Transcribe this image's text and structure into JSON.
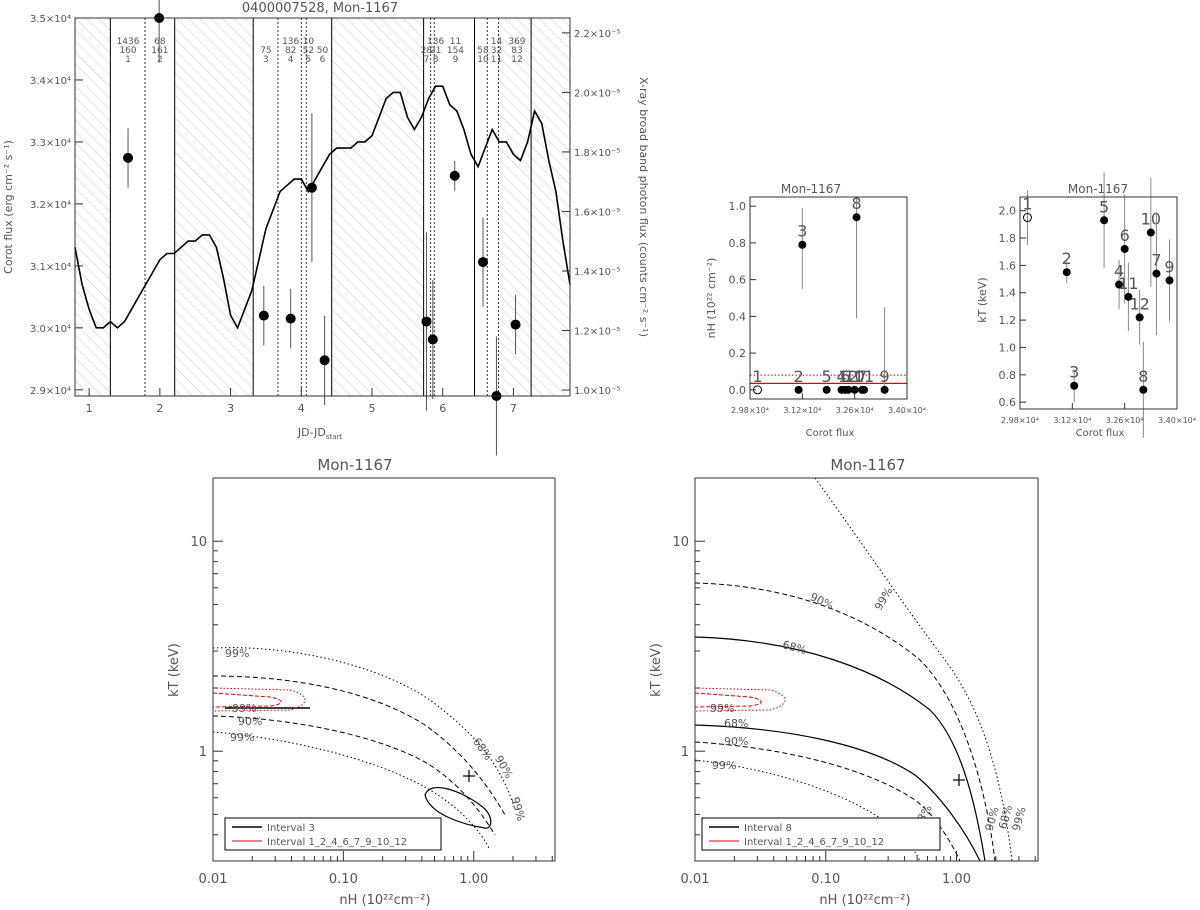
{
  "chart_data": [
    {
      "id": "lightcurve",
      "type": "line",
      "title": "0400007528, Mon-1167",
      "xlabel": "JD-JD",
      "xlabel_sub": "start",
      "ylabel": "Corot flux (erg cm⁻² s⁻¹)",
      "ylabel_right": "X-ray broad band photon flux (counts cm⁻² s⁻¹)",
      "xlim": [
        0.8,
        7.8
      ],
      "ylim": [
        28900,
        35000
      ],
      "ylim_right": [
        9.8e-06,
        2.25e-05
      ],
      "xticks": [
        "1",
        "2",
        "3",
        "4",
        "5",
        "6",
        "7"
      ],
      "yticks": [
        "2.9×10⁴",
        "3.0×10⁴",
        "3.1×10⁴",
        "3.2×10⁴",
        "3.3×10⁴",
        "3.4×10⁴",
        "3.5×10⁴"
      ],
      "yticks_right": [
        "1.0×10⁻⁵",
        "1.2×10⁻⁵",
        "1.4×10⁻⁵",
        "1.6×10⁻⁵",
        "1.8×10⁻⁵",
        "2.0×10⁻⁵",
        "2.2×10⁻⁵"
      ],
      "corot_flux": {
        "x": [
          0.8,
          0.9,
          1.0,
          1.1,
          1.2,
          1.3,
          1.4,
          1.5,
          1.6,
          1.7,
          1.8,
          1.9,
          2.0,
          2.1,
          2.2,
          2.3,
          2.4,
          2.5,
          2.6,
          2.7,
          2.8,
          2.9,
          3.0,
          3.1,
          3.2,
          3.3,
          3.4,
          3.5,
          3.6,
          3.7,
          3.8,
          3.9,
          4.0,
          4.1,
          4.2,
          4.3,
          4.4,
          4.5,
          4.6,
          4.7,
          4.8,
          4.9,
          5.0,
          5.1,
          5.2,
          5.3,
          5.4,
          5.5,
          5.6,
          5.7,
          5.8,
          5.9,
          6.0,
          6.1,
          6.2,
          6.3,
          6.4,
          6.5,
          6.6,
          6.7,
          6.8,
          6.9,
          7.0,
          7.1,
          7.2,
          7.3,
          7.4,
          7.5,
          7.6,
          7.7,
          7.8
        ],
        "y": [
          31300,
          30700,
          30300,
          30000,
          30000,
          30100,
          30000,
          30100,
          30300,
          30500,
          30700,
          30900,
          31100,
          31200,
          31200,
          31300,
          31400,
          31400,
          31500,
          31500,
          31300,
          30800,
          30200,
          30000,
          30300,
          30600,
          31100,
          31600,
          31900,
          32200,
          32300,
          32400,
          32400,
          32200,
          32400,
          32600,
          32800,
          32900,
          32900,
          32900,
          33000,
          33000,
          33100,
          33400,
          33700,
          33800,
          33800,
          33400,
          33200,
          33400,
          33700,
          33900,
          33900,
          33600,
          33500,
          33200,
          32800,
          32600,
          32900,
          33200,
          33000,
          33000,
          32800,
          32700,
          33000,
          33500,
          33300,
          32700,
          32200,
          31400,
          30700
        ]
      },
      "xray_points": {
        "label": [
          "1",
          "2",
          "3",
          "4",
          "5",
          "6",
          "7",
          "8",
          "9",
          "10",
          "11",
          "12"
        ],
        "x": [
          1.55,
          1.99,
          3.47,
          3.85,
          4.15,
          4.33,
          5.77,
          5.86,
          6.17,
          6.57,
          6.76,
          7.03
        ],
        "y": [
          1.78e-05,
          2.25e-05,
          1.25e-05,
          1.24e-05,
          1.68e-05,
          1.1e-05,
          1.23e-05,
          1.17e-05,
          1.72e-05,
          1.43e-05,
          9.8e-06,
          1.22e-05
        ],
        "err": [
          1e-06,
          1.5e-06,
          1e-06,
          1e-06,
          2.5e-06,
          1.5e-06,
          3e-06,
          2e-06,
          5e-07,
          1.5e-06,
          2e-06,
          1e-06
        ]
      },
      "intervals": {
        "edges": [
          1.3,
          1.79,
          2.21,
          3.32,
          3.67,
          4.0,
          4.07,
          4.43,
          5.73,
          5.83,
          5.88,
          6.45,
          6.63,
          6.79,
          7.25
        ],
        "labels": [
          {
            "x": 1.55,
            "top": "1436",
            "mid": "160",
            "idx": "1"
          },
          {
            "x": 2.0,
            "top": "68",
            "mid": "161",
            "idx": "2"
          },
          {
            "x": 3.5,
            "top": "",
            "mid": "75",
            "idx": "3"
          },
          {
            "x": 3.85,
            "top": "136",
            "mid": "82",
            "idx": "4"
          },
          {
            "x": 4.1,
            "top": "10",
            "mid": "52",
            "idx": "5"
          },
          {
            "x": 4.3,
            "top": "",
            "mid": "50",
            "idx": "6"
          },
          {
            "x": 5.77,
            "top": "",
            "mid": "28",
            "idx": "7"
          },
          {
            "x": 5.9,
            "top": "136",
            "mid": "21",
            "idx": "8"
          },
          {
            "x": 6.18,
            "top": "11",
            "mid": "154",
            "idx": "9"
          },
          {
            "x": 6.57,
            "top": "",
            "mid": "58",
            "idx": "10"
          },
          {
            "x": 6.76,
            "top": "14",
            "mid": "32",
            "idx": "11"
          },
          {
            "x": 7.05,
            "top": "369",
            "mid": "83",
            "idx": "12"
          }
        ]
      }
    },
    {
      "id": "nh_vs_corot",
      "type": "scatter",
      "title": "Mon-1167",
      "xlabel": "Corot flux",
      "ylabel": "nH (10²² cm⁻²)",
      "xlim": [
        29800,
        34000
      ],
      "ylim": [
        -0.05,
        1.05
      ],
      "xticks": [
        "2.98×10⁴",
        "3.12×10⁴",
        "3.26×10⁴",
        "3.40×10⁴"
      ],
      "yticks": [
        "0.0",
        "0.2",
        "0.4",
        "0.6",
        "0.8",
        "1.0"
      ],
      "points": {
        "label": [
          "1",
          "2",
          "3",
          "5",
          "4",
          "6",
          "12",
          "10",
          "8",
          "7",
          "11",
          "9"
        ],
        "x": [
          30000,
          31100,
          31200,
          31850,
          32250,
          32350,
          32430,
          32600,
          32650,
          32800,
          32850,
          33400
        ],
        "y": [
          0.0,
          0.0,
          0.79,
          0.0,
          0.0,
          0.0,
          0.0,
          0.0,
          0.94,
          0.0,
          0.0,
          0.0
        ],
        "err_low": [
          0,
          0,
          0.24,
          0,
          0,
          0,
          0,
          0,
          0.55,
          0,
          0,
          0
        ],
        "err_high": [
          0,
          0,
          0.2,
          0,
          0,
          0,
          0,
          0,
          0.1,
          0,
          0,
          0.45
        ],
        "open": [
          true,
          false,
          false,
          false,
          false,
          false,
          false,
          false,
          false,
          false,
          false,
          false
        ]
      },
      "ref_line": 0.035,
      "ref_band": [
        0.0,
        0.08
      ]
    },
    {
      "id": "kt_vs_corot",
      "type": "scatter",
      "title": "Mon-1167",
      "xlabel": "Corot flux",
      "ylabel": "kT (keV)",
      "xlim": [
        29800,
        34000
      ],
      "ylim": [
        0.55,
        2.1
      ],
      "xticks": [
        "2.98×10⁴",
        "3.12×10⁴",
        "3.26×10⁴",
        "3.40×10⁴"
      ],
      "yticks": [
        "0.6",
        "0.8",
        "1.0",
        "1.2",
        "1.4",
        "1.6",
        "1.8",
        "2.0"
      ],
      "points": {
        "label": [
          "1",
          "2",
          "3",
          "5",
          "4",
          "6",
          "11",
          "12",
          "8",
          "10",
          "7",
          "9"
        ],
        "x": [
          30000,
          31050,
          31250,
          32050,
          32450,
          32600,
          32700,
          33000,
          33100,
          33300,
          33450,
          33800
        ],
        "y": [
          1.95,
          1.55,
          0.72,
          1.93,
          1.46,
          1.72,
          1.37,
          1.22,
          0.69,
          1.84,
          1.54,
          1.49
        ],
        "err": [
          0.2,
          0.08,
          0.12,
          0.35,
          0.18,
          0.4,
          0.25,
          0.2,
          0.35,
          0.4,
          0.45,
          0.3
        ],
        "open": [
          true,
          false,
          false,
          false,
          false,
          false,
          false,
          false,
          false,
          false,
          false,
          false
        ]
      }
    },
    {
      "id": "contour_interval3",
      "type": "contour",
      "title": "Mon-1167",
      "xlabel": "nH (10²²cm⁻²)",
      "ylabel": "kT (keV)",
      "xticks": [
        "0.01",
        "0.10",
        "1.00"
      ],
      "yticks": [
        "1",
        "10"
      ],
      "legend": [
        "Interval 3",
        "Interval 1_2_4_6_7_9_10_12"
      ],
      "levels": [
        "68%",
        "90%",
        "99%"
      ],
      "best_fit": {
        "nh": 0.8,
        "kt": 0.72
      }
    },
    {
      "id": "contour_interval8",
      "type": "contour",
      "title": "Mon-1167",
      "xlabel": "nH (10²²cm⁻²)",
      "ylabel": "kT (keV)",
      "xticks": [
        "0.01",
        "0.10",
        "1.00"
      ],
      "yticks": [
        "1",
        "10"
      ],
      "legend": [
        "Interval 8",
        "Interval 1_2_4_6_7_9_10_12"
      ],
      "levels": [
        "68%",
        "90%",
        "99%"
      ],
      "best_fit": {
        "nh": 0.95,
        "kt": 0.72
      }
    }
  ]
}
